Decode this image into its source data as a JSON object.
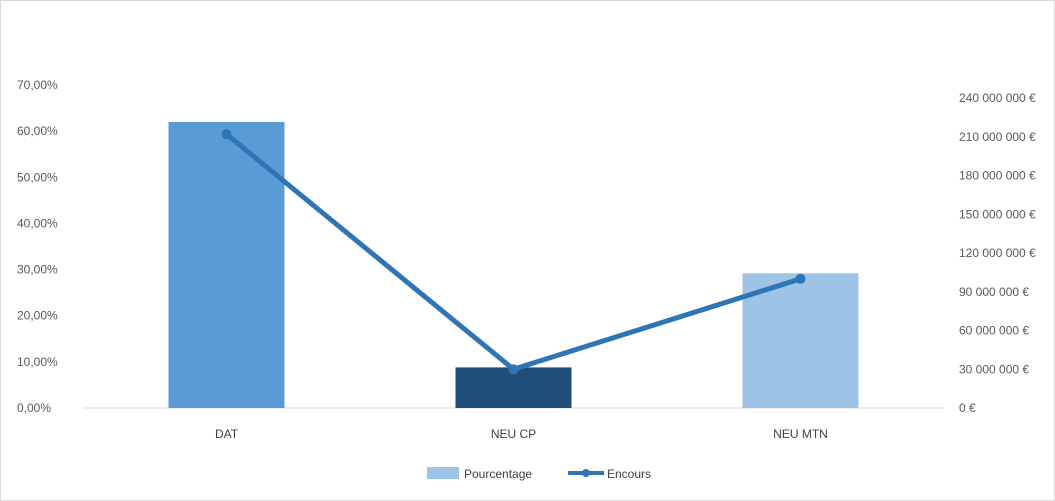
{
  "chart_data": {
    "type": "bar",
    "categories": [
      "DAT",
      "NEU CP",
      "NEU MTN"
    ],
    "series": [
      {
        "name": "Pourcentage",
        "type": "bar",
        "axis": "left",
        "values": [
          0.62,
          0.088,
          0.292
        ],
        "colors": [
          "#5b9bd5",
          "#1f4e79",
          "#9dc3e6"
        ]
      },
      {
        "name": "Encours",
        "type": "line",
        "axis": "right",
        "values": [
          212000000,
          30000000,
          100000000
        ],
        "color": "#2e75b6"
      }
    ],
    "y_left": {
      "ylim": [
        0,
        0.7
      ],
      "ticks": [
        0,
        0.1,
        0.2,
        0.3,
        0.4,
        0.5,
        0.6,
        0.7
      ],
      "tick_labels": [
        "0,00%",
        "10,00%",
        "20,00%",
        "30,00%",
        "40,00%",
        "50,00%",
        "60,00%",
        "70,00%"
      ]
    },
    "y_right": {
      "ylim": [
        0,
        240000000
      ],
      "ticks": [
        0,
        30000000,
        60000000,
        90000000,
        120000000,
        150000000,
        180000000,
        210000000,
        240000000
      ],
      "tick_labels": [
        "0 €",
        "30 000 000 €",
        "60 000 000 €",
        "90 000 000 €",
        "120 000 000 €",
        "150 000 000 €",
        "180 000 000 €",
        "210 000 000 €",
        "240 000 000 €"
      ]
    },
    "legend": [
      "Pourcentage",
      "Encours"
    ],
    "legend_position": "bottom",
    "grid": false,
    "title": "",
    "xlabel": "",
    "ylabel": ""
  }
}
